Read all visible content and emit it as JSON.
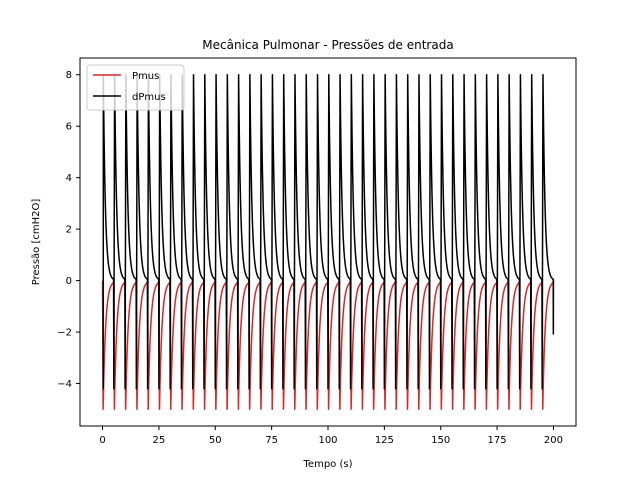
{
  "chart_data": {
    "type": "line",
    "title": "Mecânica Pulmonar - Pressões de entrada",
    "xlabel": "Tempo (s)",
    "ylabel": "Pressão [cmH2O]",
    "xlim": [
      -10,
      210
    ],
    "ylim": [
      -5.65,
      8.65
    ],
    "xticks": [
      0,
      25,
      50,
      75,
      100,
      125,
      150,
      175,
      200
    ],
    "yticks": [
      -4,
      -2,
      0,
      2,
      4,
      6,
      8
    ],
    "grid": false,
    "legend_position": "top-left",
    "breath_period_s": 5,
    "breath_count": 40,
    "series": [
      {
        "name": "Pmus",
        "color": "#d62728",
        "cycle_shape": "negative exponential dips returning toward 0",
        "min": -5,
        "max": 0
      },
      {
        "name": "dPmus",
        "color": "#000000",
        "cycle_shape": "sharp positive spikes decaying toward 0",
        "min": -4.2,
        "max": 8
      }
    ]
  }
}
